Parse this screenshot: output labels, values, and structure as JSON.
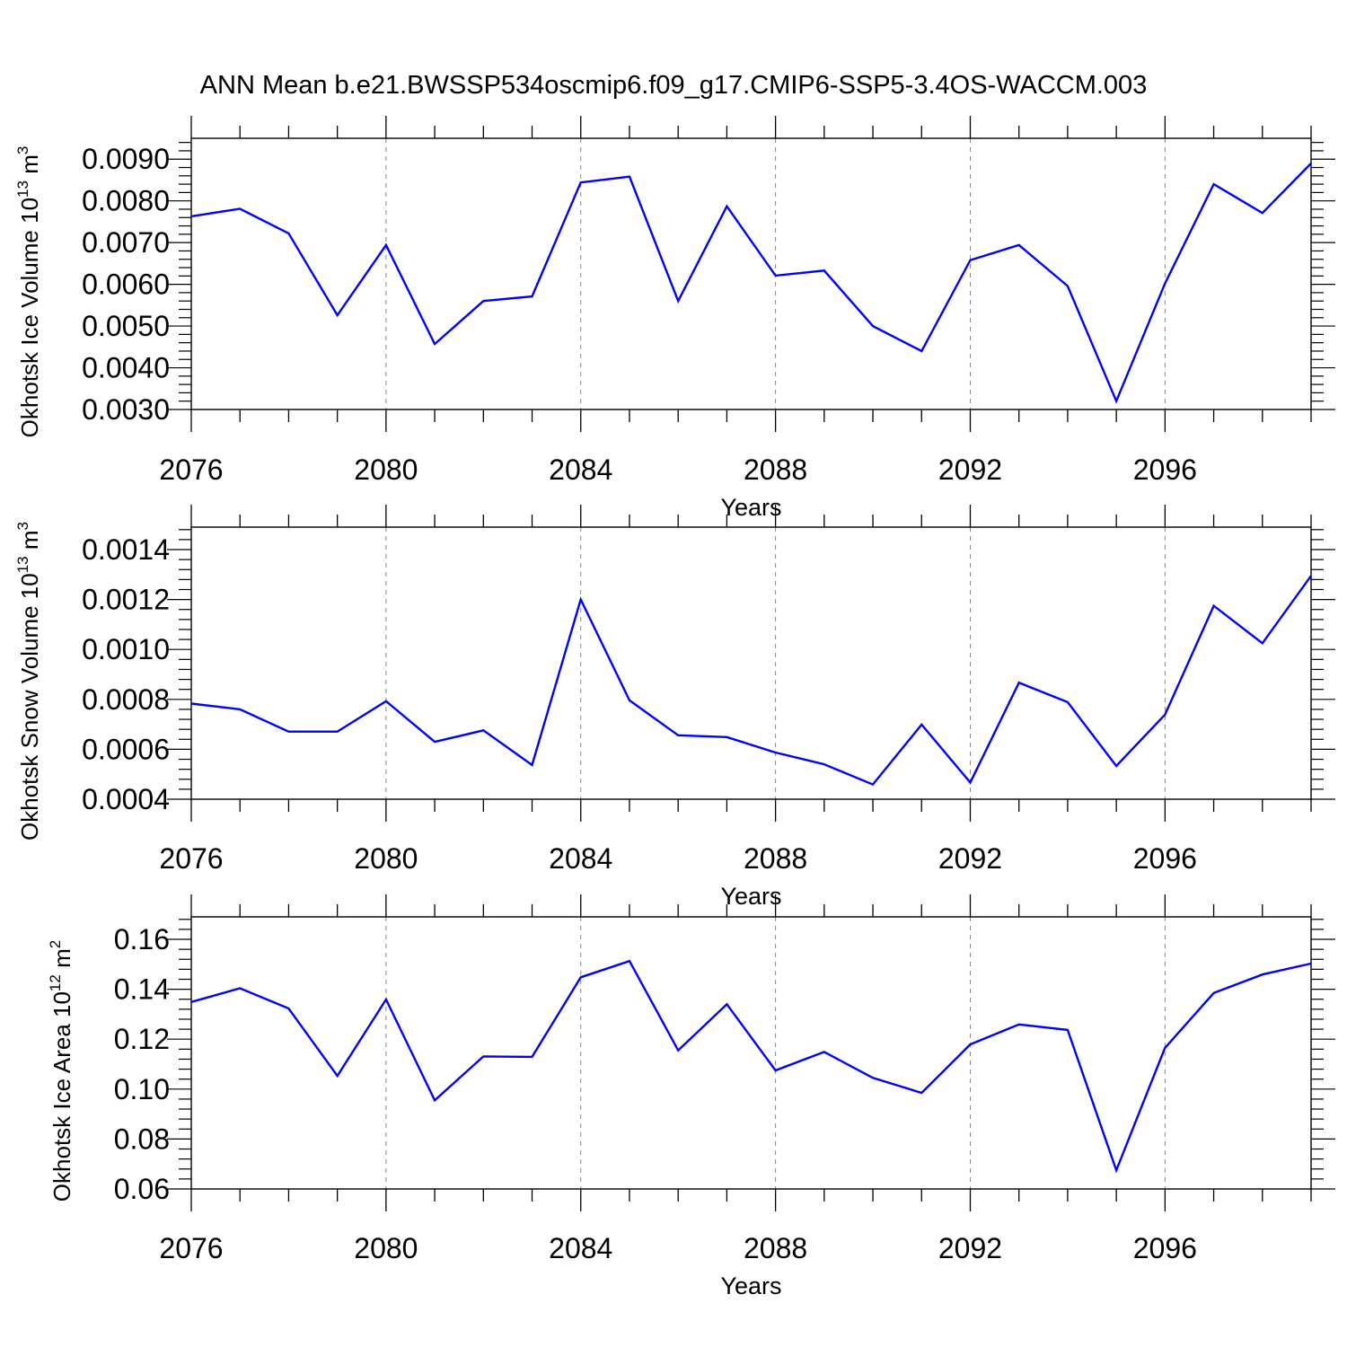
{
  "title": "ANN Mean b.e21.BWSSP534oscmip6.f09_g17.CMIP6-SSP5-3.4OS-WACCM.003",
  "colors": {
    "line": "#0000ff",
    "axis": "#000000",
    "grid": "#888888"
  },
  "chart_data": [
    {
      "type": "line",
      "ylabel_main": "Okhotsk Ice Volume 10",
      "ylabel_sup": "13",
      "ylabel_unit": " m",
      "ylabel_unit_sup": "3",
      "xlabel": "Years",
      "xlim": [
        2076,
        2099
      ],
      "ylim": [
        0.003,
        0.0095
      ],
      "yticks": [
        "0.0030",
        "0.0040",
        "0.0050",
        "0.0060",
        "0.0070",
        "0.0080",
        "0.0090"
      ],
      "xticks": [
        "2076",
        "2080",
        "2084",
        "2088",
        "2092",
        "2096"
      ],
      "grid": "vertical dashed at major x ticks",
      "x": [
        2076,
        2077,
        2078,
        2079,
        2080,
        2081,
        2082,
        2083,
        2084,
        2085,
        2086,
        2087,
        2088,
        2089,
        2090,
        2091,
        2092,
        2093,
        2094,
        2095,
        2096,
        2097,
        2098,
        2099
      ],
      "values": [
        0.00763,
        0.00781,
        0.00722,
        0.00526,
        0.00694,
        0.00457,
        0.0056,
        0.00571,
        0.00844,
        0.00858,
        0.0056,
        0.00787,
        0.00621,
        0.00633,
        0.005,
        0.0044,
        0.00658,
        0.00694,
        0.00596,
        0.0032,
        0.00602,
        0.0084,
        0.00771,
        0.0089
      ]
    },
    {
      "type": "line",
      "ylabel_main": "Okhotsk Snow Volume 10",
      "ylabel_sup": "13",
      "ylabel_unit": " m",
      "ylabel_unit_sup": "3",
      "xlabel": "Years",
      "xlim": [
        2076,
        2099
      ],
      "ylim": [
        0.0004,
        0.00149
      ],
      "yticks": [
        "0.0004",
        "0.0006",
        "0.0008",
        "0.0010",
        "0.0012",
        "0.0014"
      ],
      "xticks": [
        "2076",
        "2080",
        "2084",
        "2088",
        "2092",
        "2096"
      ],
      "grid": "vertical dashed at major x ticks",
      "x": [
        2076,
        2077,
        2078,
        2079,
        2080,
        2081,
        2082,
        2083,
        2084,
        2085,
        2086,
        2087,
        2088,
        2089,
        2090,
        2091,
        2092,
        2093,
        2094,
        2095,
        2096,
        2097,
        2098,
        2099
      ],
      "values": [
        0.000783,
        0.00076,
        0.000671,
        0.000671,
        0.000793,
        0.00063,
        0.000676,
        0.000537,
        0.0012,
        0.000796,
        0.000656,
        0.000649,
        0.000587,
        0.00054,
        0.000459,
        0.000699,
        0.000467,
        0.000867,
        0.000789,
        0.000533,
        0.000739,
        0.001175,
        0.001025,
        0.001295
      ]
    },
    {
      "type": "line",
      "ylabel_main": "Okhotsk Ice Area 10",
      "ylabel_sup": "12",
      "ylabel_unit": " m",
      "ylabel_unit_sup": "2",
      "xlabel": "Years",
      "xlim": [
        2076,
        2099
      ],
      "ylim": [
        0.06,
        0.169
      ],
      "yticks": [
        "0.06",
        "0.08",
        "0.10",
        "0.12",
        "0.14",
        "0.16"
      ],
      "xticks": [
        "2076",
        "2080",
        "2084",
        "2088",
        "2092",
        "2096"
      ],
      "grid": "vertical dashed at major x ticks",
      "x": [
        2076,
        2077,
        2078,
        2079,
        2080,
        2081,
        2082,
        2083,
        2084,
        2085,
        2086,
        2087,
        2088,
        2089,
        2090,
        2091,
        2092,
        2093,
        2094,
        2095,
        2096,
        2097,
        2098,
        2099
      ],
      "values": [
        0.1349,
        0.1404,
        0.1323,
        0.1053,
        0.1359,
        0.0955,
        0.1131,
        0.1129,
        0.1448,
        0.1513,
        0.1155,
        0.134,
        0.1075,
        0.1149,
        0.1045,
        0.0985,
        0.1179,
        0.1259,
        0.1237,
        0.0675,
        0.1165,
        0.1385,
        0.1459,
        0.1503
      ]
    }
  ]
}
